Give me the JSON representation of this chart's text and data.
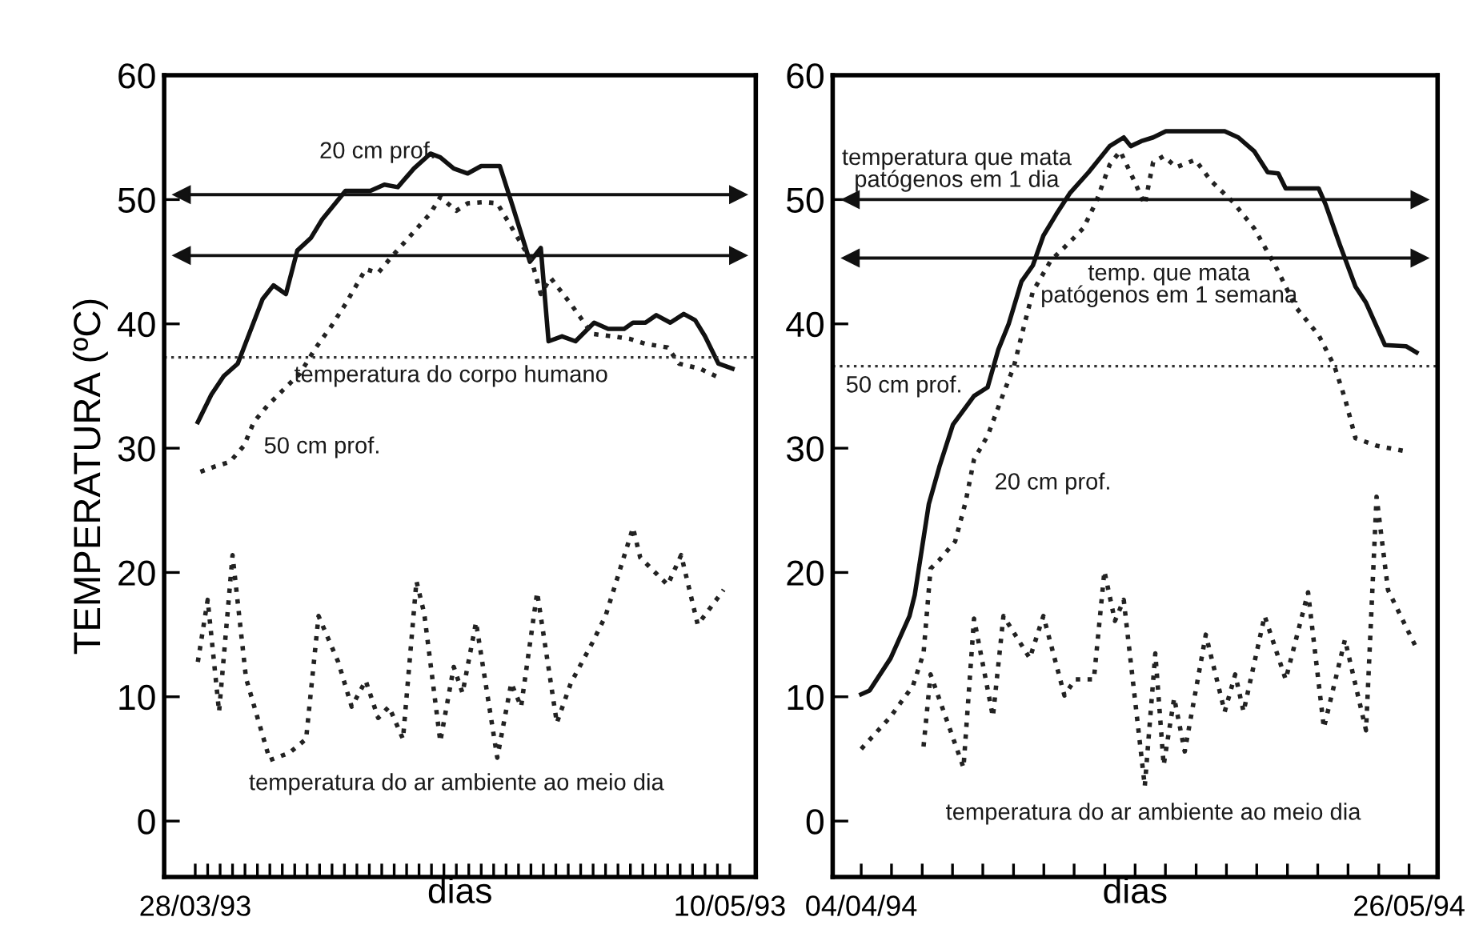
{
  "chart_data": [
    {
      "type": "line",
      "ylabel": "TEMPERATURA (ºC)",
      "xlabel": "dias",
      "xlim": [
        "1993-03-25T12:00",
        "1993-05-12T02:00"
      ],
      "ylim": [
        -4.5,
        60
      ],
      "yticks": [
        0,
        10,
        20,
        30,
        40,
        50,
        60
      ],
      "grid": false,
      "xticks": [
        {
          "value": "1993-03-28",
          "label": "28/03/93"
        },
        {
          "value": "1993-03-29",
          "label": null
        },
        {
          "value": "1993-03-30",
          "label": null
        },
        {
          "value": "1993-03-31",
          "label": null
        },
        {
          "value": "1993-04-01",
          "label": null
        },
        {
          "value": "1993-04-02",
          "label": null
        },
        {
          "value": "1993-04-03",
          "label": null
        },
        {
          "value": "1993-04-04",
          "label": null
        },
        {
          "value": "1993-04-05",
          "label": null
        },
        {
          "value": "1993-04-06",
          "label": null
        },
        {
          "value": "1993-04-07",
          "label": null
        },
        {
          "value": "1993-04-08",
          "label": null
        },
        {
          "value": "1993-04-09",
          "label": null
        },
        {
          "value": "1993-04-10",
          "label": null
        },
        {
          "value": "1993-04-11",
          "label": null
        },
        {
          "value": "1993-04-12",
          "label": null
        },
        {
          "value": "1993-04-13",
          "label": null
        },
        {
          "value": "1993-04-14",
          "label": null
        },
        {
          "value": "1993-04-15",
          "label": null
        },
        {
          "value": "1993-04-16",
          "label": null
        },
        {
          "value": "1993-04-17",
          "label": null
        },
        {
          "value": "1993-04-18",
          "label": null
        },
        {
          "value": "1993-04-19",
          "label": null
        },
        {
          "value": "1993-04-20",
          "label": null
        },
        {
          "value": "1993-04-21",
          "label": null
        },
        {
          "value": "1993-04-22",
          "label": null
        },
        {
          "value": "1993-04-23",
          "label": null
        },
        {
          "value": "1993-04-24",
          "label": null
        },
        {
          "value": "1993-04-25",
          "label": null
        },
        {
          "value": "1993-04-26",
          "label": null
        },
        {
          "value": "1993-04-27",
          "label": null
        },
        {
          "value": "1993-04-28",
          "label": null
        },
        {
          "value": "1993-04-29",
          "label": null
        },
        {
          "value": "1993-04-30",
          "label": null
        },
        {
          "value": "1993-05-01",
          "label": null
        },
        {
          "value": "1993-05-02",
          "label": null
        },
        {
          "value": "1993-05-03",
          "label": null
        },
        {
          "value": "1993-05-04",
          "label": null
        },
        {
          "value": "1993-05-05",
          "label": null
        },
        {
          "value": "1993-05-06",
          "label": null
        },
        {
          "value": "1993-05-07",
          "label": null
        },
        {
          "value": "1993-05-08",
          "label": null
        },
        {
          "value": "1993-05-09",
          "label": null
        },
        {
          "value": "1993-05-10",
          "label": "10/05/93"
        }
      ],
      "series": [
        {
          "color": "#111111",
          "line_style": "solid",
          "x": [
            "1993-03-28T05:00",
            "1993-03-29T07:00",
            "1993-03-30T07:00",
            "1993-03-31T10:00",
            "1993-04-02T10:00",
            "1993-04-03T07:00",
            "1993-04-04T07:00",
            "1993-04-05T05:00",
            "1993-04-06T07:00",
            "1993-04-07T05:00",
            "1993-04-09T02:00",
            "1993-04-11T02:00",
            "1993-04-12T05:00",
            "1993-04-13T07:00",
            "1993-04-14T14:00",
            "1993-04-15T22:00",
            "1993-04-16T17:00",
            "1993-04-17T19:00",
            "1993-04-18T22:00",
            "1993-04-20T00:00",
            "1993-04-21T12:00",
            "1993-04-22T14:00",
            "1993-04-23T22:00",
            "1993-04-24T19:00",
            "1993-04-25T10:00",
            "1993-04-26T12:00",
            "1993-04-27T14:00",
            "1993-04-29T02:00",
            "1993-04-30T05:00",
            "1993-05-01T12:00",
            "1993-05-02T05:00",
            "1993-05-03T05:00",
            "1993-05-04T02:00",
            "1993-05-05T05:00",
            "1993-05-06T07:00",
            "1993-05-07T05:00",
            "1993-05-08T00:00",
            "1993-05-09T02:00",
            "1993-05-10T05:00"
          ],
          "values": [
            32.1,
            34.3,
            35.8,
            36.8,
            42.0,
            43.1,
            42.4,
            45.9,
            46.9,
            48.4,
            50.7,
            50.7,
            51.2,
            51.0,
            52.5,
            53.7,
            53.4,
            52.5,
            52.1,
            52.7,
            52.7,
            49.3,
            45.0,
            46.1,
            38.6,
            39.0,
            38.6,
            40.1,
            39.6,
            39.6,
            40.1,
            40.1,
            40.7,
            40.1,
            40.8,
            40.3,
            39.0,
            36.8,
            36.4
          ]
        },
        {
          "color": "#222222",
          "line_style": "dotted",
          "x": [
            "1993-03-28T10:00",
            "1993-03-29T12:00",
            "1993-03-30T19:00",
            "1993-03-31T22:00",
            "1993-04-01T17:00",
            "1993-04-02T19:00",
            "1993-04-04T02:00",
            "1993-04-05T10:00",
            "1993-04-06T17:00",
            "1993-04-08T00:00",
            "1993-04-09T02:00",
            "1993-04-10T17:00",
            "1993-04-11T17:00",
            "1993-04-12T19:00",
            "1993-04-14T14:00",
            "1993-04-15T22:00",
            "1993-04-16T17:00",
            "1993-04-18T00:00",
            "1993-04-18T22:00",
            "1993-04-20T05:00",
            "1993-04-21T07:00",
            "1993-04-24T02:00",
            "1993-04-24T19:00",
            "1993-04-25T14:00",
            "1993-04-27T05:00",
            "1993-04-28T22:00",
            "1993-04-30T14:00",
            "1993-05-01T22:00",
            "1993-05-03T05:00",
            "1993-05-05T00:00",
            "1993-05-05T22:00",
            "1993-05-07T14:00",
            "1993-05-09T07:00"
          ],
          "values": [
            28.1,
            28.5,
            28.9,
            30.2,
            32.1,
            33.4,
            34.7,
            36.0,
            38.1,
            39.9,
            41.6,
            44.4,
            44.1,
            45.4,
            47.4,
            48.9,
            50.2,
            49.1,
            49.7,
            49.8,
            49.7,
            45.0,
            42.4,
            43.7,
            41.6,
            39.2,
            39.0,
            38.8,
            38.4,
            38.1,
            36.8,
            36.4,
            35.6
          ]
        },
        {
          "color": "#222222",
          "line_style": "dotted",
          "x": [
            "1993-03-28T05:00",
            "1993-03-29T00:00",
            "1993-03-29T22:00",
            "1993-03-31T00:00",
            "1993-04-01T02:00",
            "1993-04-03T00:00",
            "1993-04-04T14:00",
            "1993-04-05T22:00",
            "1993-04-06T22:00",
            "1993-04-08T12:00",
            "1993-04-09T14:00",
            "1993-04-10T17:00",
            "1993-04-11T17:00",
            "1993-04-12T14:00",
            "1993-04-13T17:00",
            "1993-04-14T19:00",
            "1993-04-15T10:00",
            "1993-04-16T17:00",
            "1993-04-17T19:00",
            "1993-04-18T12:00",
            "1993-04-19T14:00",
            "1993-04-21T07:00",
            "1993-04-22T10:00",
            "1993-04-23T05:00",
            "1993-04-24T12:00",
            "1993-04-26T02:00",
            "1993-04-27T05:00",
            "1993-04-28T22:00",
            "1993-04-30T00:00",
            "1993-05-02T05:00",
            "1993-05-02T19:00",
            "1993-05-05T00:00",
            "1993-05-06T02:00",
            "1993-05-07T10:00",
            "1993-05-09T12:00"
          ],
          "values": [
            12.8,
            17.8,
            8.8,
            21.4,
            11.5,
            4.9,
            5.5,
            6.6,
            16.5,
            12.8,
            9.2,
            11.3,
            8.3,
            9.2,
            6.6,
            19.3,
            16.7,
            6.4,
            12.4,
            10.3,
            16.0,
            5.1,
            11.1,
            9.2,
            18.4,
            7.9,
            11.1,
            14.3,
            16.5,
            23.6,
            21.2,
            19.0,
            21.4,
            15.8,
            18.6
          ]
        }
      ],
      "ref_lines": [
        {
          "axis": "y",
          "value": 50.4,
          "line_style": "solid",
          "color": "#111111"
        },
        {
          "axis": "y",
          "value": 45.5,
          "line_style": "solid",
          "color": "#111111"
        },
        {
          "axis": "y",
          "value": 37.3,
          "line_style": "dotted",
          "color": "#333333"
        }
      ],
      "annotations": [
        "20 cm prof.",
        "temperatura do corpo humano",
        "50 cm prof.",
        "temperatura do ar ambiente ao meio dia"
      ]
    },
    {
      "type": "line",
      "xlabel": "dias",
      "xlim": [
        "1994-04-01T07:00",
        "1994-05-28T17:00"
      ],
      "ylim": [
        -4.5,
        60
      ],
      "yticks": [
        0,
        10,
        20,
        30,
        40,
        50,
        60
      ],
      "grid": false,
      "xticks": [
        {
          "value": "1994-04-04",
          "label": "04/04/94"
        },
        {
          "value": "1994-04-06T21:00",
          "label": null
        },
        {
          "value": "1994-04-09T19:00",
          "label": null
        },
        {
          "value": "1994-04-12T16:00",
          "label": null
        },
        {
          "value": "1994-04-15T13:00",
          "label": null
        },
        {
          "value": "1994-04-18T11:00",
          "label": null
        },
        {
          "value": "1994-04-21T08:00",
          "label": null
        },
        {
          "value": "1994-04-24T05:00",
          "label": null
        },
        {
          "value": "1994-04-27T03:00",
          "label": null
        },
        {
          "value": "1994-04-30",
          "label": null
        },
        {
          "value": "1994-05-02T21:00",
          "label": null
        },
        {
          "value": "1994-05-05T19:00",
          "label": null
        },
        {
          "value": "1994-05-08T16:00",
          "label": null
        },
        {
          "value": "1994-05-11T13:00",
          "label": null
        },
        {
          "value": "1994-05-14T11:00",
          "label": null
        },
        {
          "value": "1994-05-17T08:00",
          "label": null
        },
        {
          "value": "1994-05-20T05:00",
          "label": null
        },
        {
          "value": "1994-05-23T03:00",
          "label": null
        },
        {
          "value": "1994-05-26",
          "label": "26/05/94"
        }
      ],
      "series": [
        {
          "color": "#111111",
          "line_style": "solid",
          "x": [
            "1994-04-04T00:00",
            "1994-04-04T19:00",
            "1994-04-06T19:00",
            "1994-04-08T14:00",
            "1994-04-09T02:00",
            "1994-04-10T10:00",
            "1994-04-11T10:00",
            "1994-04-12T17:00",
            "1994-04-14T17:00",
            "1994-04-16T00:00",
            "1994-04-17T00:00",
            "1994-04-18T00:00",
            "1994-04-19T05:00",
            "1994-04-20T07:00",
            "1994-04-21T07:00",
            "1994-04-22T12:00",
            "1994-04-23T19:00",
            "1994-04-25T14:00",
            "1994-04-27T14:00",
            "1994-04-28T22:00",
            "1994-04-29T14:00",
            "1994-04-30T14:00",
            "1994-05-01T17:00",
            "1994-05-02T22:00",
            "1994-05-05T17:00",
            "1994-05-08T12:00",
            "1994-05-09T19:00",
            "1994-05-11T07:00",
            "1994-05-12T14:00",
            "1994-05-13T14:00",
            "1994-05-14T07:00",
            "1994-05-17T10:00",
            "1994-05-18T02:00",
            "1994-05-19T10:00",
            "1994-05-20T22:00",
            "1994-05-21T22:00",
            "1994-05-23T17:00",
            "1994-05-25T17:00",
            "1994-05-26T17:00"
          ],
          "values": [
            10.2,
            10.5,
            13.1,
            16.5,
            18.2,
            25.5,
            28.5,
            31.9,
            34.2,
            34.9,
            37.9,
            40.0,
            43.4,
            44.7,
            47.1,
            48.8,
            50.5,
            52.2,
            54.3,
            55.0,
            54.3,
            54.7,
            55.0,
            55.5,
            55.5,
            55.5,
            55.0,
            53.9,
            52.2,
            52.1,
            50.9,
            50.9,
            49.6,
            46.4,
            43.0,
            41.7,
            38.3,
            38.2,
            37.7
          ]
        },
        {
          "color": "#222222",
          "line_style": "dotted",
          "x": [
            "1994-04-04T00:00",
            "1994-04-06T19:00",
            "1994-04-08T22:00",
            "1994-04-09T22:00",
            "1994-04-10T14:00",
            "1994-04-11T10:00",
            "1994-04-12T22:00",
            "1994-04-13T22:00",
            "1994-04-14T17:00",
            "1994-04-16T00:00",
            "1994-04-17T12:00",
            "1994-04-18T12:00",
            "1994-04-19T12:00",
            "1994-04-20T07:00",
            "1994-04-22T00:00",
            "1994-04-23T14:00",
            "1994-04-25T02:00",
            "1994-04-26T07:00",
            "1994-04-27T14:00",
            "1994-04-28T14:00",
            "1994-04-29T22:00",
            "1994-04-30T22:00",
            "1994-05-01T17:00",
            "1994-05-02T17:00",
            "1994-05-03T22:00",
            "1994-05-05T17:00",
            "1994-05-07T05:00",
            "1994-05-09T07:00",
            "1994-05-11T07:00",
            "1994-05-13T07:00",
            "1994-05-15T07:00",
            "1994-05-17T10:00",
            "1994-05-18T22:00",
            "1994-05-19T22:00",
            "1994-05-20T22:00",
            "1994-05-22T22:00",
            "1994-05-26T00:00"
          ],
          "values": [
            5.8,
            8.4,
            10.9,
            13.5,
            20.3,
            21.0,
            22.5,
            25.7,
            29.1,
            31.0,
            34.4,
            36.6,
            40.0,
            42.6,
            45.1,
            46.4,
            47.7,
            49.8,
            52.8,
            53.9,
            51.5,
            49.6,
            53.0,
            53.5,
            52.6,
            53.2,
            51.5,
            49.8,
            47.7,
            44.7,
            41.3,
            39.1,
            36.6,
            34.0,
            30.8,
            30.2,
            29.7
          ]
        },
        {
          "color": "#222222",
          "line_style": "dotted",
          "x": [
            "1994-04-09T22:00",
            "1994-04-10T14:00",
            "1994-04-13T17:00",
            "1994-04-14T17:00",
            "1994-04-16T12:00",
            "1994-04-17T12:00",
            "1994-04-20T00:00",
            "1994-04-21T07:00",
            "1994-04-23T07:00",
            "1994-04-24T07:00",
            "1994-04-26T02:00",
            "1994-04-27T02:00",
            "1994-04-28T02:00",
            "1994-04-28T22:00",
            "1994-04-30T22:00",
            "1994-05-01T22:00",
            "1994-05-02T17:00",
            "1994-05-03T17:00",
            "1994-05-04T17:00",
            "1994-05-06T17:00",
            "1994-05-08T12:00",
            "1994-05-09T12:00",
            "1994-05-10T07:00",
            "1994-05-12T07:00",
            "1994-05-14T07:00",
            "1994-05-16T10:00",
            "1994-05-17T22:00",
            "1994-05-19T22:00",
            "1994-05-21T22:00",
            "1994-05-22T22:00",
            "1994-05-24T00:00",
            "1994-05-26T17:00"
          ],
          "values": [
            6.0,
            11.8,
            4.3,
            16.3,
            8.4,
            16.5,
            13.1,
            16.5,
            10.1,
            11.4,
            11.4,
            20.1,
            16.1,
            17.8,
            2.8,
            13.5,
            4.5,
            9.9,
            5.6,
            15.0,
            8.8,
            11.8,
            8.8,
            16.5,
            11.4,
            18.4,
            7.5,
            14.6,
            7.3,
            26.1,
            18.6,
            13.9
          ]
        }
      ],
      "ref_lines": [
        {
          "axis": "y",
          "value": 50,
          "line_style": "solid",
          "color": "#111111"
        },
        {
          "axis": "y",
          "value": 45.3,
          "line_style": "solid",
          "color": "#111111"
        },
        {
          "axis": "y",
          "value": 36.6,
          "line_style": "dotted",
          "color": "#333333"
        }
      ],
      "annotations": [
        "temperatura que mata\npatógenos em 1 dia",
        "temp. que mata\npatógenos em 1 semana",
        "50 cm prof.",
        "20 cm prof.",
        "temperatura do ar ambiente ao meio dia"
      ]
    }
  ]
}
